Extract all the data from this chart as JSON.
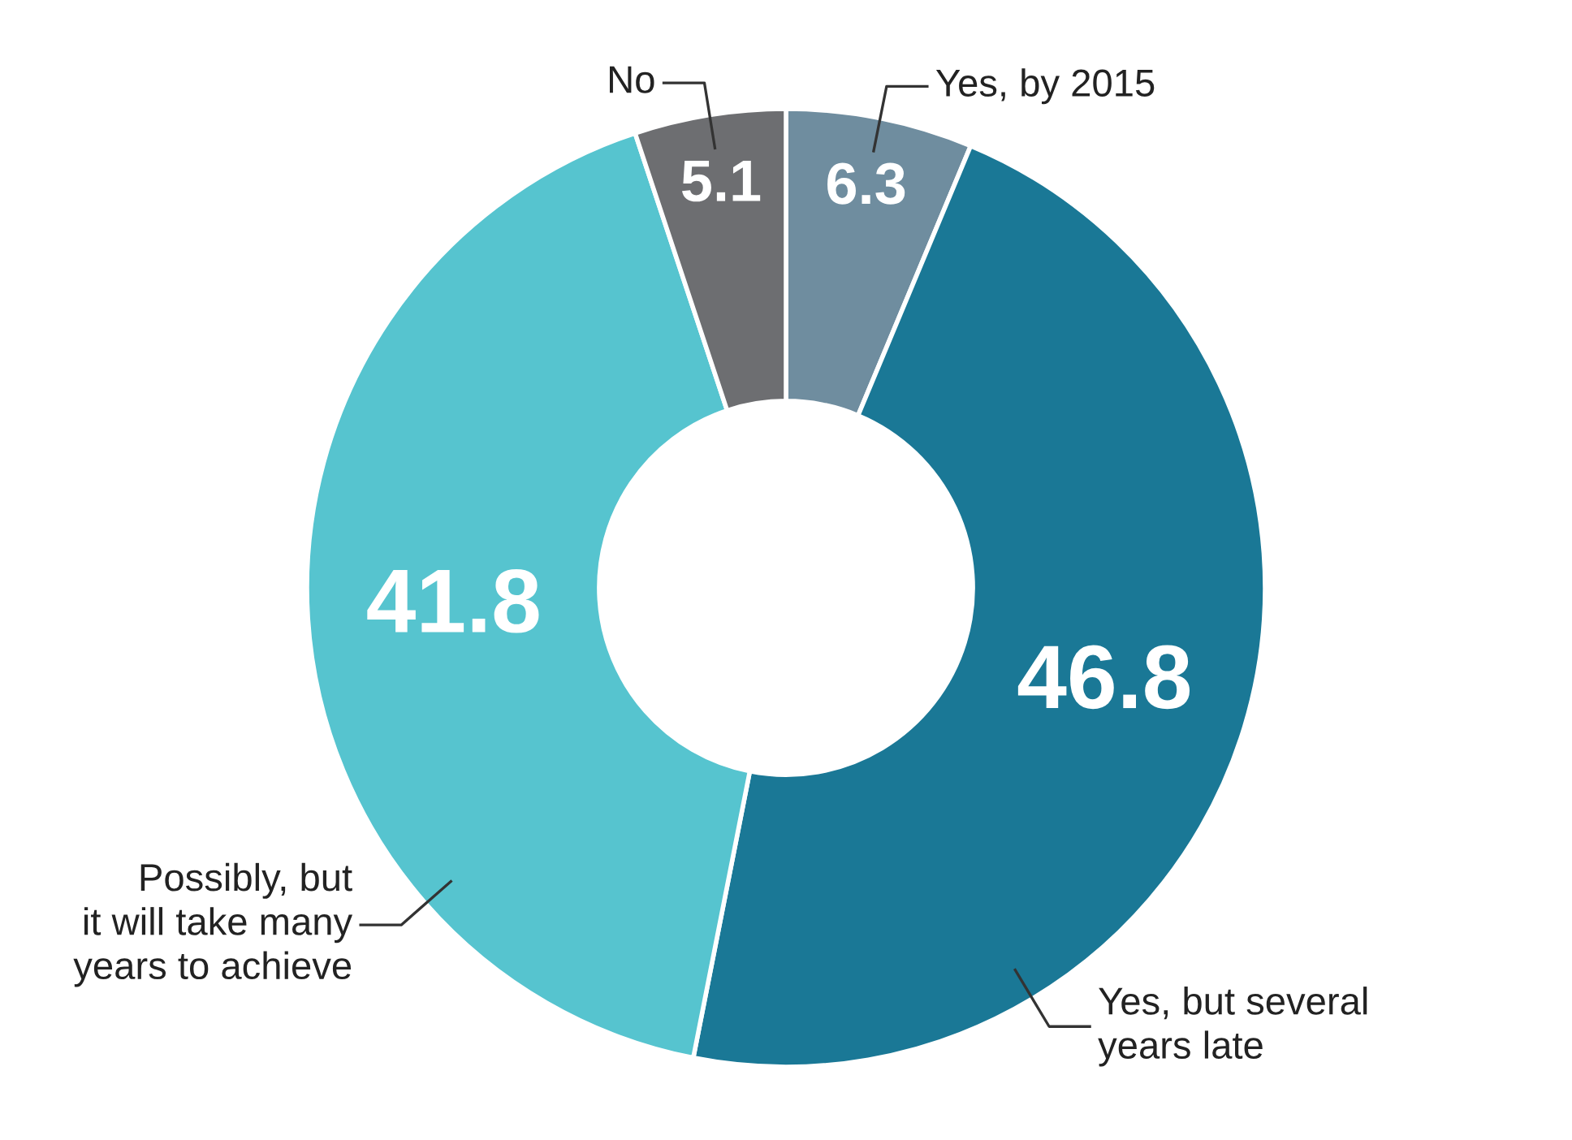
{
  "chart_data": {
    "type": "donut",
    "categories": [
      "Yes, by 2015",
      "Yes, but several\nyears late",
      "Possibly, but\nit will take many\nyears to achieve",
      "No"
    ],
    "values": [
      6.3,
      46.8,
      41.8,
      5.1
    ],
    "colors": [
      "#6f8d9f",
      "#1a7896",
      "#56c4cf",
      "#6d6e71"
    ],
    "data_labels": true,
    "legend": false
  }
}
